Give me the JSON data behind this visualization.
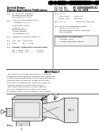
{
  "bg_color": "#ffffff",
  "barcode_color": "#000000",
  "text_dark": "#111111",
  "text_gray": "#555555",
  "line_color": "#000000",
  "diagram_edge": "#444444",
  "diagram_fill_main": "#d8d8d8",
  "diagram_fill_inner": "#e8e8e8",
  "diagram_fill_light": "#ebebeb",
  "header_bg": "#ffffff"
}
